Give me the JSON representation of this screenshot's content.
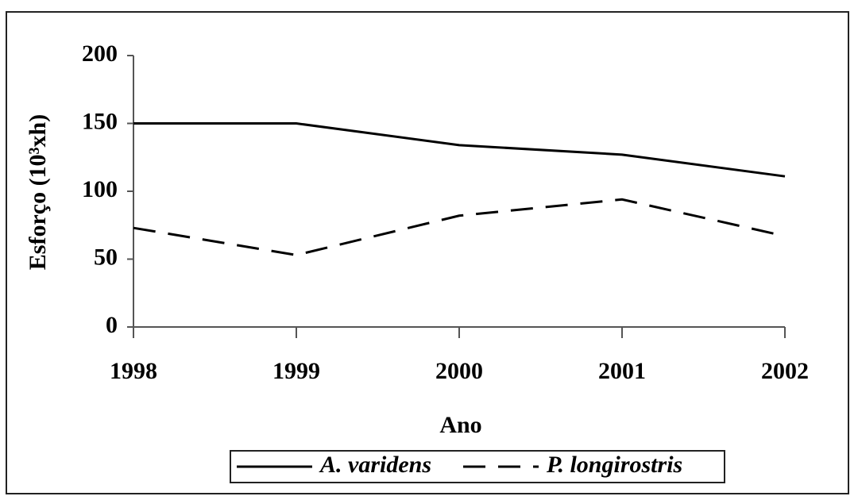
{
  "chart_data": {
    "type": "line",
    "x_label": "Ano",
    "y_label": "Esforço (10³xh)",
    "x": [
      1998,
      1999,
      2000,
      2001,
      2002
    ],
    "xlim": [
      1998,
      2002
    ],
    "xticks": [
      1998,
      1999,
      2000,
      2001,
      2002
    ],
    "ylim": [
      0,
      200
    ],
    "yticks": [
      0,
      50,
      100,
      150,
      200
    ],
    "series": [
      {
        "name": "A. varidens",
        "color": "#000000",
        "line_style": "solid",
        "values": [
          150,
          150,
          134,
          127,
          111
        ]
      },
      {
        "name": "P. longirostris",
        "color": "#000000",
        "line_style": "dashed",
        "values": [
          73,
          53,
          82,
          94,
          67
        ]
      }
    ],
    "legend": "bottom"
  }
}
